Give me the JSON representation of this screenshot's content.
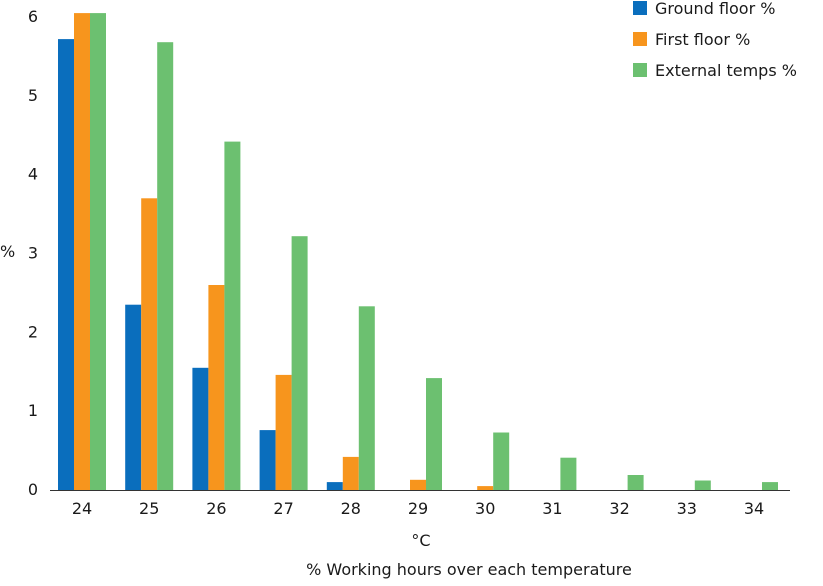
{
  "chart_data": {
    "type": "bar",
    "categories": [
      "24",
      "25",
      "26",
      "27",
      "28",
      "29",
      "30",
      "31",
      "32",
      "33",
      "34"
    ],
    "series": [
      {
        "name": "Ground floor %",
        "color": "#0a6ebd",
        "values": [
          5.72,
          2.35,
          1.55,
          0.76,
          0.1,
          0,
          0,
          0,
          0,
          0,
          0
        ]
      },
      {
        "name": "First floor %",
        "color": "#f7951d",
        "values": [
          6.05,
          3.7,
          2.6,
          1.46,
          0.42,
          0.13,
          0.05,
          0,
          0,
          0,
          0
        ]
      },
      {
        "name": "External temps %",
        "color": "#6cc070",
        "values": [
          6.05,
          5.68,
          4.42,
          3.22,
          2.33,
          1.42,
          0.73,
          0.41,
          0.19,
          0.12,
          0.1
        ]
      }
    ],
    "xlabel": "°C",
    "ylabel": "%",
    "ylim": [
      0,
      6
    ],
    "yticks": [
      "0",
      "1",
      "2",
      "3",
      "4",
      "5",
      "6"
    ],
    "caption": "% Working hours over each temperature",
    "legend_position": "top-right",
    "grid": false
  }
}
